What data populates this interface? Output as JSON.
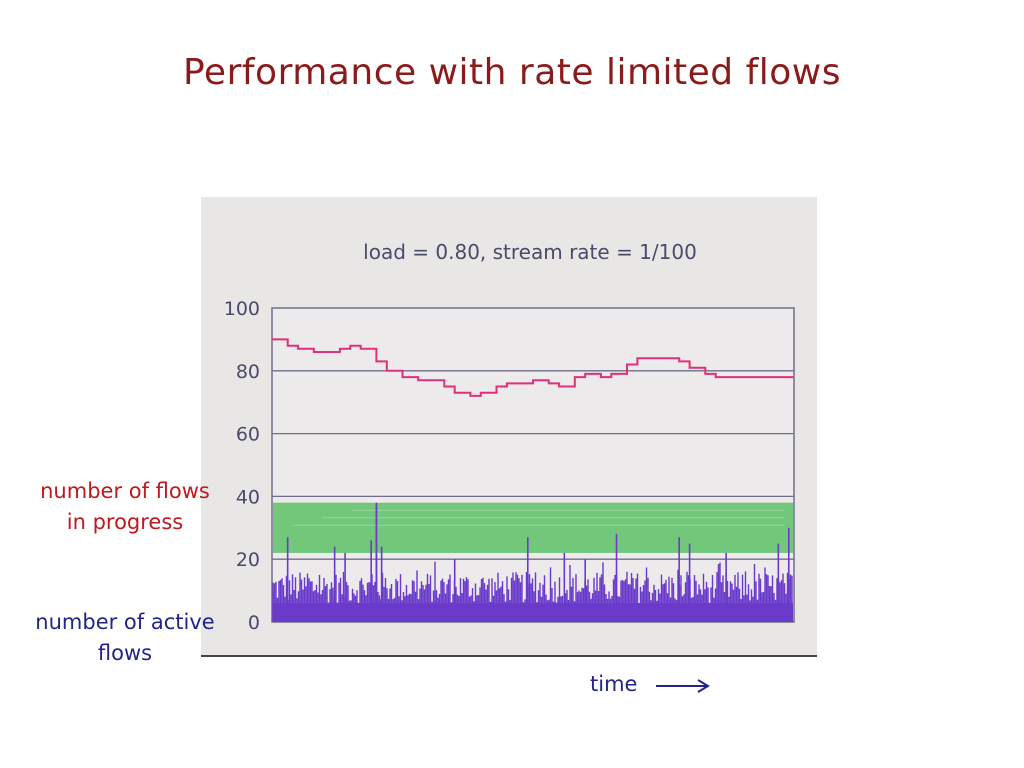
{
  "slide": {
    "title": "Performance with rate limited flows",
    "label_flows_in_progress": "number of flows in progress",
    "label_active_flows": "number of active flows",
    "time_label": "time"
  },
  "colors": {
    "title": "#8b1a1a",
    "label_progress": "#c0181c",
    "label_active": "#23238a",
    "progress_line": "#e0307a",
    "active_flows": "#6a3acb",
    "band": "#72c77a",
    "panel_bg": "#e9e6e6",
    "plot_bg": "#eceaea",
    "grid": "#6f6f8a"
  },
  "chart_data": {
    "type": "line",
    "title": "load = 0.80, stream rate = 1/100",
    "xlabel": "",
    "ylabel": "",
    "ylim": [
      0,
      100
    ],
    "yticks": [
      "0",
      "20",
      "40",
      "60",
      "80",
      "100"
    ],
    "grid": true,
    "x": [
      0,
      0.03,
      0.05,
      0.08,
      0.1,
      0.13,
      0.15,
      0.17,
      0.2,
      0.22,
      0.25,
      0.28,
      0.3,
      0.33,
      0.35,
      0.38,
      0.4,
      0.43,
      0.45,
      0.48,
      0.5,
      0.53,
      0.55,
      0.58,
      0.6,
      0.63,
      0.65,
      0.68,
      0.7,
      0.73,
      0.75,
      0.78,
      0.8,
      0.83,
      0.85,
      0.88,
      0.9,
      0.93,
      0.95,
      0.98,
      1.0
    ],
    "series": [
      {
        "id": "flows_in_progress",
        "values": [
          90,
          88,
          87,
          86,
          86,
          87,
          88,
          87,
          83,
          80,
          78,
          77,
          77,
          75,
          73,
          72,
          73,
          75,
          76,
          76,
          77,
          76,
          75,
          78,
          79,
          78,
          79,
          82,
          84,
          84,
          84,
          83,
          81,
          79,
          78,
          78,
          78,
          78,
          78,
          78,
          78
        ]
      },
      {
        "id": "active_flows",
        "baseline_min": 6,
        "baseline_max": 16,
        "band_range": [
          22,
          38
        ],
        "peaks": [
          {
            "x": 0.03,
            "value": 27
          },
          {
            "x": 0.12,
            "value": 24
          },
          {
            "x": 0.14,
            "value": 22
          },
          {
            "x": 0.19,
            "value": 26
          },
          {
            "x": 0.2,
            "value": 21
          },
          {
            "x": 0.21,
            "value": 24
          },
          {
            "x": 0.2,
            "value": 37
          },
          {
            "x": 0.2,
            "value": 38
          },
          {
            "x": 0.35,
            "value": 20
          },
          {
            "x": 0.49,
            "value": 27
          },
          {
            "x": 0.56,
            "value": 22
          },
          {
            "x": 0.6,
            "value": 20
          },
          {
            "x": 0.66,
            "value": 28
          },
          {
            "x": 0.78,
            "value": 27
          },
          {
            "x": 0.8,
            "value": 25
          },
          {
            "x": 0.87,
            "value": 22
          },
          {
            "x": 0.97,
            "value": 25
          },
          {
            "x": 0.99,
            "value": 30
          }
        ]
      }
    ]
  }
}
